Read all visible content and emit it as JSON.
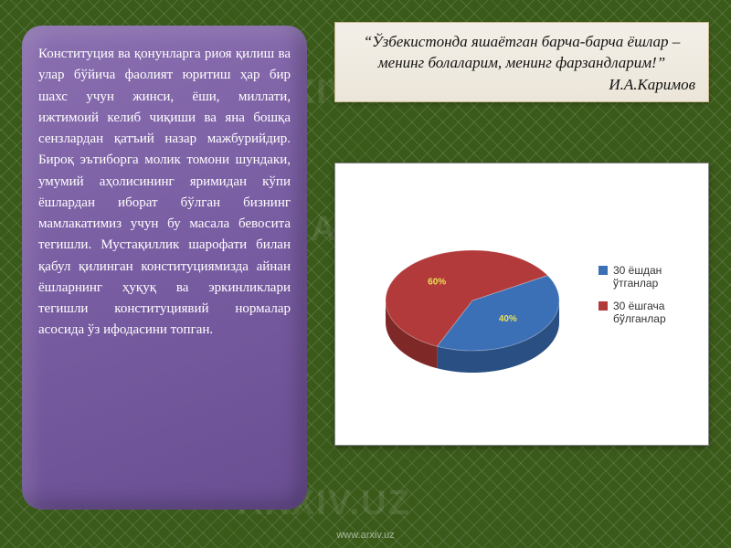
{
  "watermark_text": "ARXIV.UZ",
  "text_panel": {
    "paragraph": "Конституция ва қонунларга риоя қилиш ва улар бўйича фаолият юритиш ҳар бир шахс учун жинси, ёши, миллати, ижтимоий келиб чиқиши ва яна бошқа сензлардан қатъий назар мажбурийдир. Бироқ эътиборга молик томони шундаки, умумий аҳолисининг яримидан кўпи ёшлардан иборат бўлган бизнинг мамлакатимиз учун бу масала бевосита тегишли. Мустақиллик шарофати билан қабул қилинган конституциямизда айнан ёшларнинг ҳуқуқ ва эркинликлари тегишли конституциявий нормалар асосида ўз ифодасини топган."
  },
  "quote_box": {
    "quote": "“Ўзбекистонда яшаётган барча-барча ёшлар – менинг болаларим, менинг фарзандларим!”",
    "author": "И.А.Каримов"
  },
  "chart": {
    "type": "pie3d",
    "background_color": "#ffffff",
    "slices": [
      {
        "label": "30 ёшдан ўтганлар",
        "value": 40,
        "pct_label": "40%",
        "color": "#3b6fb6",
        "side_color": "#2a4f82",
        "legend_swatch": "#3b6fb6"
      },
      {
        "label": "30 ёшгача бўлганлар",
        "value": 60,
        "pct_label": "60%",
        "color": "#b23a3a",
        "side_color": "#7e2828",
        "legend_swatch": "#b23a3a"
      }
    ],
    "pct_label_color": "#e8e055",
    "pct_label_fontsize": 10,
    "legend_fontsize": 12
  },
  "footer": {
    "url": "www.arxiv.uz"
  }
}
